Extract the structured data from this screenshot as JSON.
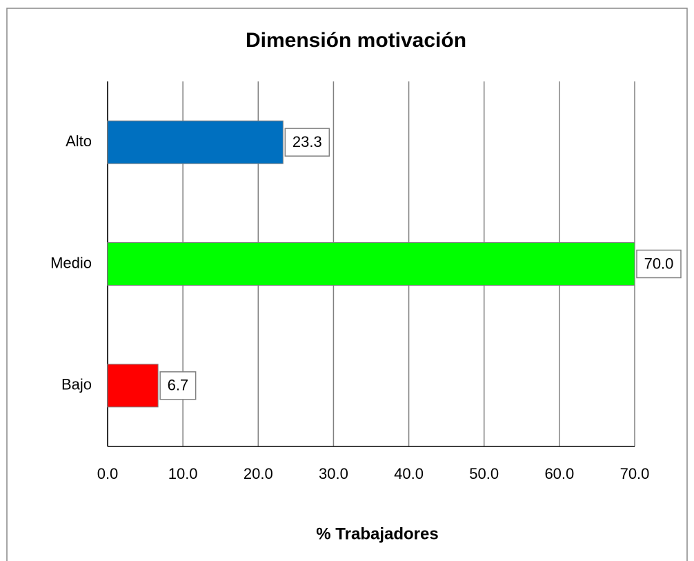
{
  "chart_data": {
    "type": "bar",
    "orientation": "horizontal",
    "title": "Dimensión motivación",
    "categories": [
      "Alto",
      "Medio",
      "Bajo"
    ],
    "values": [
      23.3,
      70,
      6.7
    ],
    "value_labels": [
      "23.3",
      "70.0",
      "6.7"
    ],
    "colors": [
      "#0070c0",
      "#00ff00",
      "#ff0000"
    ],
    "xlabel": "% Trabajadores",
    "xlim": [
      0,
      70
    ],
    "xticks": [
      {
        "value": 0,
        "label": "0.0"
      },
      {
        "value": 10,
        "label": "10.0"
      },
      {
        "value": 20,
        "label": "20.0"
      },
      {
        "value": 30,
        "label": "30.0"
      },
      {
        "value": 40,
        "label": "40.0"
      },
      {
        "value": 50,
        "label": "50.0"
      },
      {
        "value": 60,
        "label": "60.0"
      },
      {
        "value": 70,
        "label": "70.0"
      }
    ],
    "grid": true
  }
}
